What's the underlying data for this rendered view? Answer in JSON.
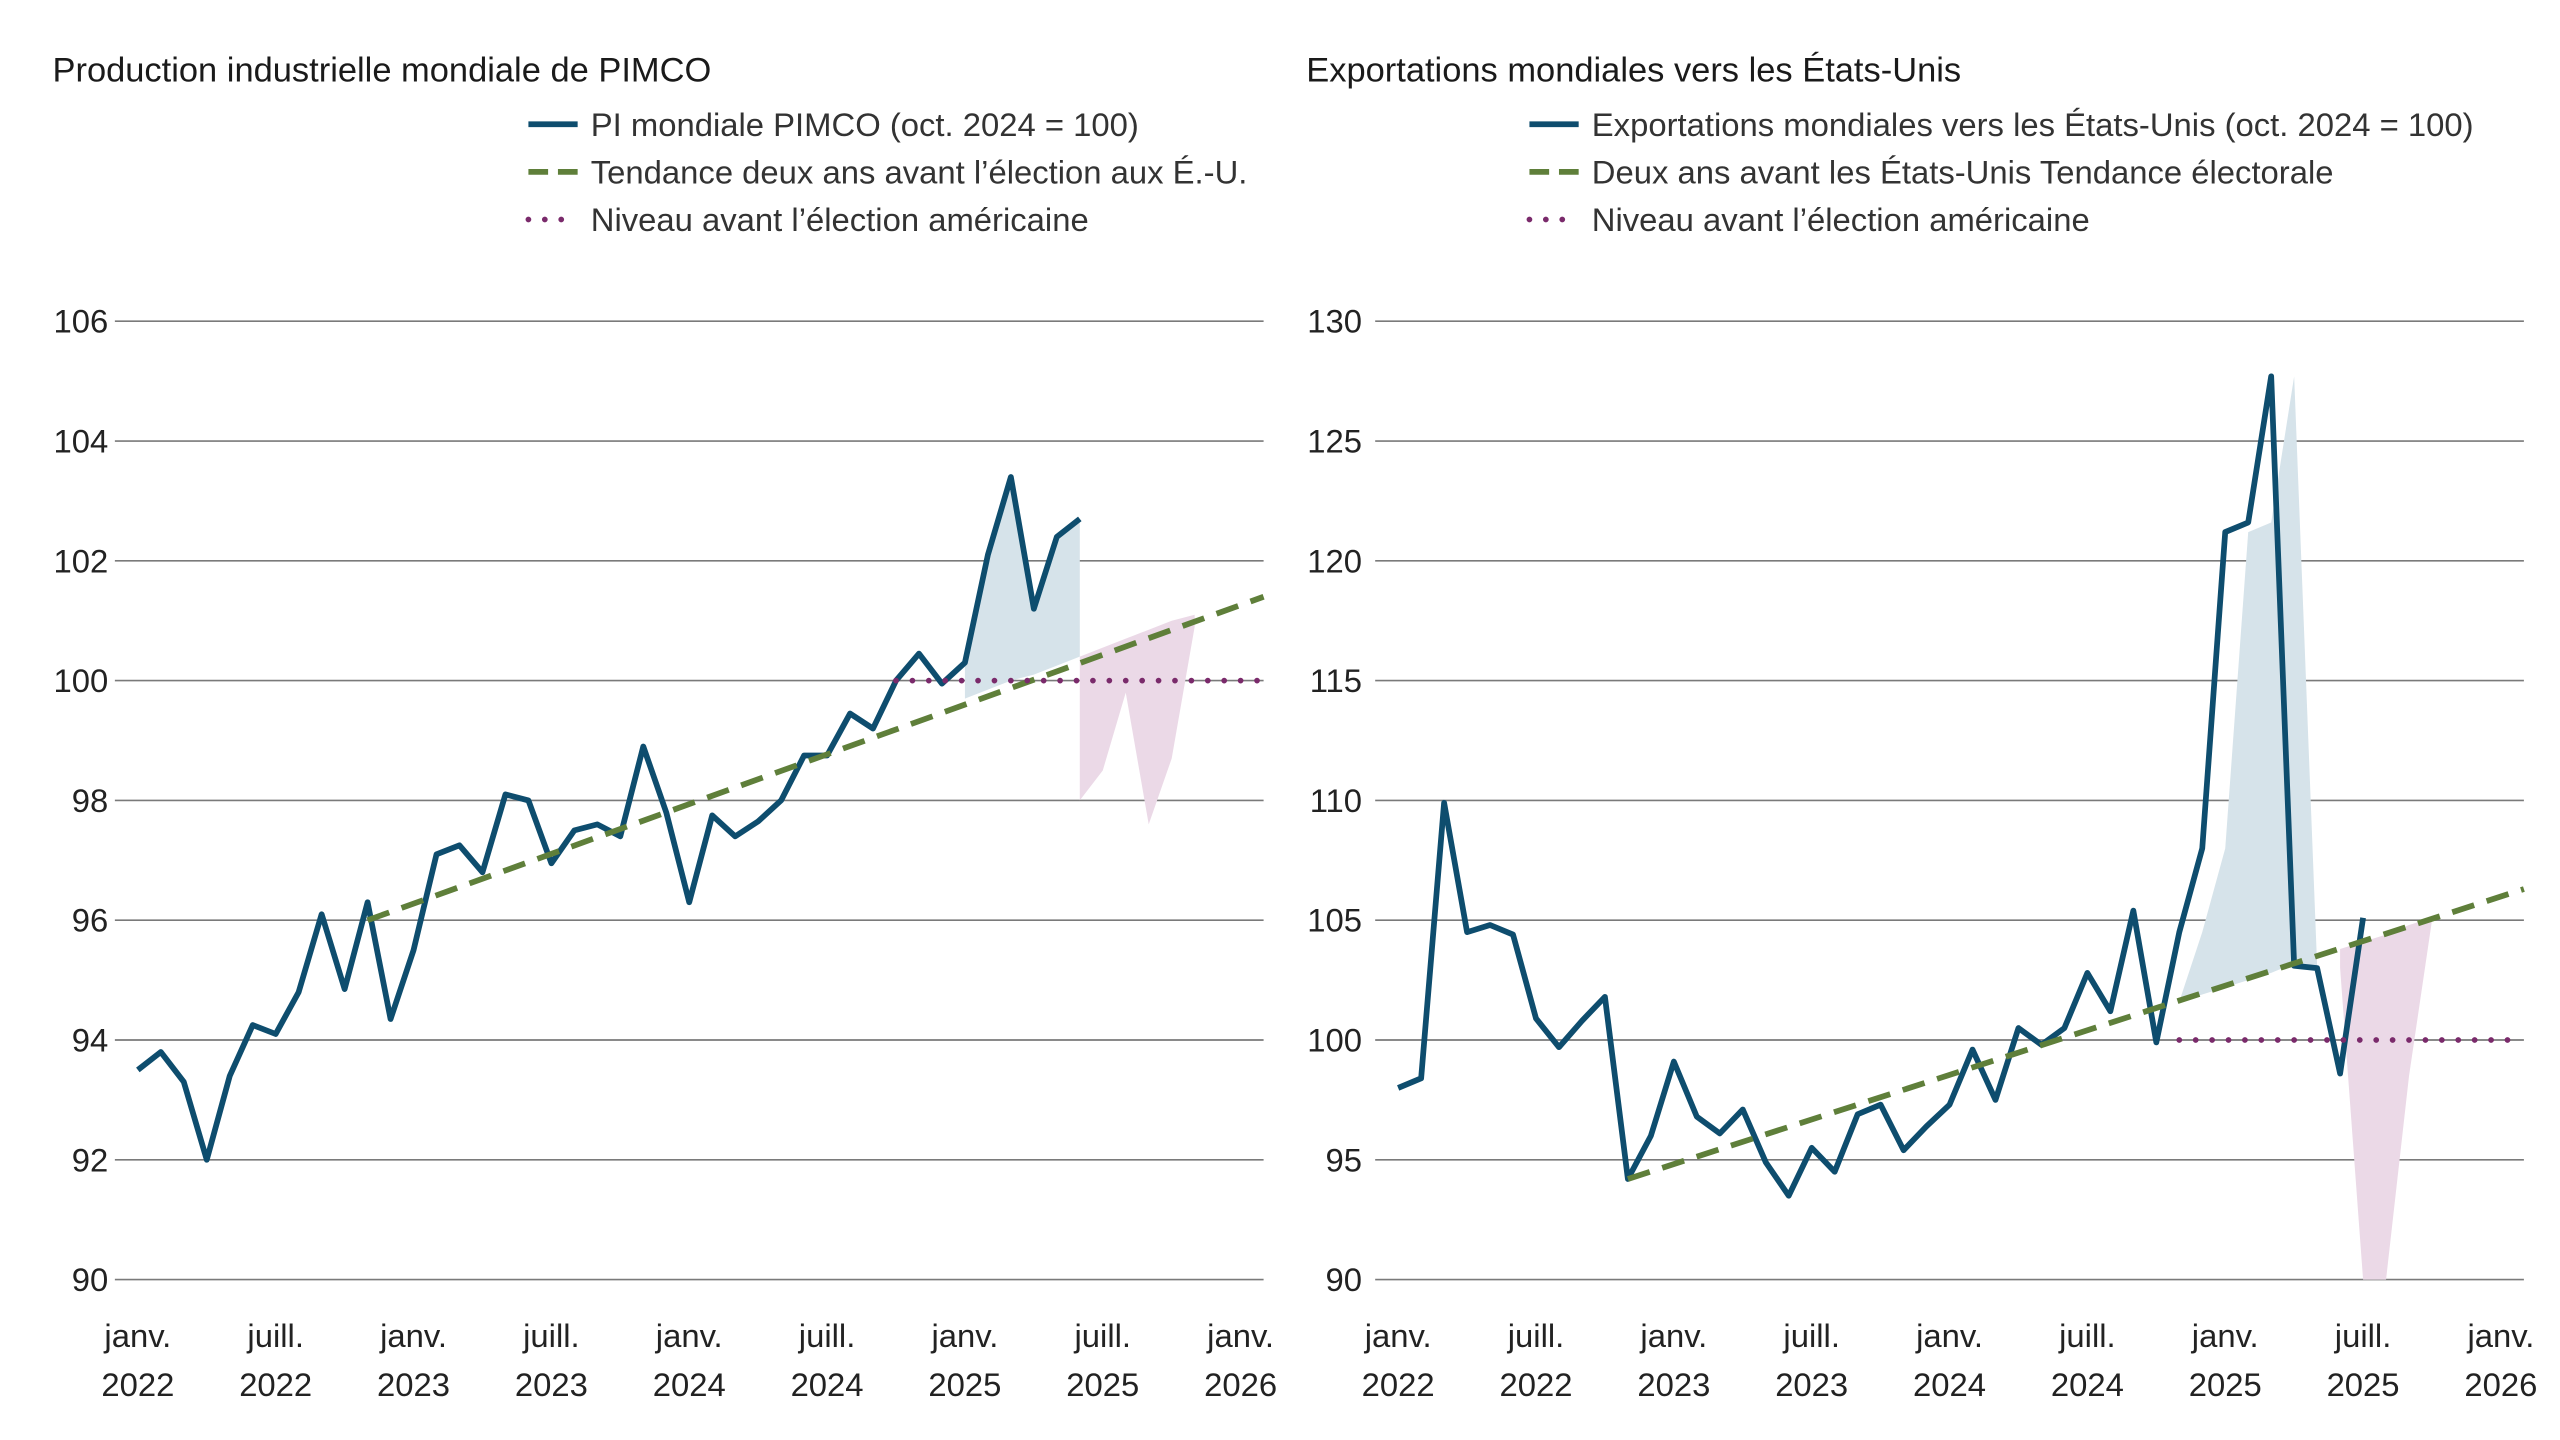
{
  "chart_data": [
    {
      "type": "line",
      "title": "Production industrielle mondiale de PIMCO",
      "xlim": [
        "2021-12",
        "2026-02"
      ],
      "xticks": [
        {
          "value": "2022-01",
          "label": [
            "janv.",
            "2022"
          ]
        },
        {
          "value": "2022-07",
          "label": [
            "juill.",
            "2022"
          ]
        },
        {
          "value": "2023-01",
          "label": [
            "janv.",
            "2023"
          ]
        },
        {
          "value": "2023-07",
          "label": [
            "juill.",
            "2023"
          ]
        },
        {
          "value": "2024-01",
          "label": [
            "janv.",
            "2024"
          ]
        },
        {
          "value": "2024-07",
          "label": [
            "juill.",
            "2024"
          ]
        },
        {
          "value": "2025-01",
          "label": [
            "janv.",
            "2025"
          ]
        },
        {
          "value": "2025-07",
          "label": [
            "juill.",
            "2025"
          ]
        },
        {
          "value": "2026-01",
          "label": [
            "janv.",
            "2026"
          ]
        }
      ],
      "ylim": [
        90,
        106
      ],
      "yticks": [
        90,
        92,
        94,
        96,
        98,
        100,
        102,
        104,
        106
      ],
      "grid": true,
      "x": [
        "2022-01",
        "2022-02",
        "2022-03",
        "2022-04",
        "2022-05",
        "2022-06",
        "2022-07",
        "2022-08",
        "2022-09",
        "2022-10",
        "2022-11",
        "2022-12",
        "2023-01",
        "2023-02",
        "2023-03",
        "2023-04",
        "2023-05",
        "2023-06",
        "2023-07",
        "2023-08",
        "2023-09",
        "2023-10",
        "2023-11",
        "2023-12",
        "2024-01",
        "2024-02",
        "2024-03",
        "2024-04",
        "2024-05",
        "2024-06",
        "2024-07",
        "2024-08",
        "2024-09",
        "2024-10",
        "2024-11",
        "2024-12",
        "2025-01",
        "2025-02",
        "2025-03",
        "2025-04",
        "2025-05",
        "2025-06"
      ],
      "series": [
        {
          "name": "PI mondiale PIMCO (oct. 2024 = 100)",
          "color": "#0e4d6e",
          "line_style": "solid",
          "values": [
            93.5,
            93.8,
            93.3,
            92.0,
            93.4,
            94.25,
            94.1,
            94.8,
            96.1,
            94.85,
            96.3,
            94.35,
            95.5,
            97.1,
            97.25,
            96.8,
            98.1,
            98.0,
            96.95,
            97.5,
            97.6,
            97.4,
            98.9,
            97.8,
            96.3,
            97.75,
            97.4,
            97.65,
            98.0,
            98.75,
            98.75,
            99.45,
            99.2,
            100.0,
            100.45,
            99.95,
            100.3,
            102.1,
            103.4,
            101.2,
            102.4,
            102.7
          ]
        },
        {
          "name": "Tendance deux ans avant l’élection aux É.-U.",
          "color": "#5f7f3a",
          "line_style": "dashed",
          "x": [
            "2022-11",
            "2026-02"
          ],
          "values": [
            96.0,
            101.4
          ]
        },
        {
          "name": "Niveau avant l’élection américaine",
          "color": "#7a2a6b",
          "line_style": "dotted",
          "x": [
            "2024-10",
            "2026-02"
          ],
          "values": [
            100,
            100
          ]
        }
      ],
      "areas": [
        {
          "color": "#d6e3ea",
          "x": [
            "2025-01",
            "2025-02",
            "2025-03",
            "2025-04",
            "2025-05",
            "2025-06"
          ],
          "high": [
            100.3,
            102.1,
            103.4,
            101.2,
            102.4,
            102.7
          ],
          "low": [
            99.7,
            99.85,
            100.0,
            100.1,
            100.25,
            100.4
          ]
        },
        {
          "color": "#ebd9e7",
          "x": [
            "2025-06",
            "2025-07",
            "2025-08",
            "2025-09",
            "2025-10",
            "2025-11"
          ],
          "high": [
            100.4,
            100.55,
            100.7,
            100.85,
            101.0,
            101.1
          ],
          "low": [
            98.0,
            98.5,
            99.8,
            97.6,
            98.7,
            100.9
          ]
        }
      ]
    },
    {
      "type": "line",
      "title": "Exportations mondiales vers les États-Unis",
      "xlim": [
        "2021-12",
        "2026-02"
      ],
      "xticks": [
        {
          "value": "2022-01",
          "label": [
            "janv.",
            "2022"
          ]
        },
        {
          "value": "2022-07",
          "label": [
            "juill.",
            "2022"
          ]
        },
        {
          "value": "2023-01",
          "label": [
            "janv.",
            "2023"
          ]
        },
        {
          "value": "2023-07",
          "label": [
            "juill.",
            "2023"
          ]
        },
        {
          "value": "2024-01",
          "label": [
            "janv.",
            "2024"
          ]
        },
        {
          "value": "2024-07",
          "label": [
            "juill.",
            "2024"
          ]
        },
        {
          "value": "2025-01",
          "label": [
            "janv.",
            "2025"
          ]
        },
        {
          "value": "2025-07",
          "label": [
            "juill.",
            "2025"
          ]
        },
        {
          "value": "2026-01",
          "label": [
            "janv.",
            "2026"
          ]
        }
      ],
      "ylim": [
        90,
        130
      ],
      "yticks": [
        90,
        95,
        100,
        105,
        110,
        115,
        120,
        125,
        130
      ],
      "grid": true,
      "x": [
        "2022-01",
        "2022-02",
        "2022-03",
        "2022-04",
        "2022-05",
        "2022-06",
        "2022-07",
        "2022-08",
        "2022-09",
        "2022-10",
        "2022-11",
        "2022-12",
        "2023-01",
        "2023-02",
        "2023-03",
        "2023-04",
        "2023-05",
        "2023-06",
        "2023-07",
        "2023-08",
        "2023-09",
        "2023-10",
        "2023-11",
        "2023-12",
        "2024-01",
        "2024-02",
        "2024-03",
        "2024-04",
        "2024-05",
        "2024-06",
        "2024-07",
        "2024-08",
        "2024-09",
        "2024-10",
        "2024-11",
        "2024-12",
        "2025-01",
        "2025-02",
        "2025-03",
        "2025-04",
        "2025-05",
        "2025-06",
        "2025-07"
      ],
      "series": [
        {
          "name": "Exportations mondiales vers les États-Unis (oct. 2024 = 100)",
          "color": "#0e4d6e",
          "line_style": "solid",
          "values": [
            98.0,
            98.4,
            109.9,
            104.5,
            104.8,
            104.4,
            100.9,
            99.7,
            100.8,
            101.8,
            94.2,
            96.0,
            99.1,
            96.8,
            96.1,
            97.1,
            94.9,
            93.5,
            95.5,
            94.5,
            96.9,
            97.3,
            95.4,
            96.4,
            97.3,
            99.6,
            97.5,
            100.5,
            99.8,
            100.5,
            102.8,
            101.2,
            105.4,
            99.9,
            104.5,
            108.0,
            121.2,
            121.6,
            127.7,
            103.1,
            103.0,
            98.6,
            105.1
          ]
        },
        {
          "name": "Deux ans avant les États-Unis Tendance électorale",
          "color": "#5f7f3a",
          "line_style": "dashed",
          "x": [
            "2022-11",
            "2026-02"
          ],
          "values": [
            94.2,
            106.3
          ]
        },
        {
          "name": "Niveau avant l’élection américaine",
          "color": "#7a2a6b",
          "line_style": "dotted",
          "x": [
            "2024-11",
            "2026-02"
          ],
          "values": [
            100,
            100
          ]
        }
      ],
      "areas": [
        {
          "color": "#d6e3ea",
          "x": [
            "2024-11",
            "2024-12",
            "2025-01",
            "2025-02",
            "2025-03",
            "2025-04",
            "2025-05"
          ],
          "high": [
            101.6,
            104.5,
            108.0,
            121.2,
            121.6,
            127.7,
            103.1
          ],
          "low": [
            101.6,
            101.9,
            102.2,
            102.5,
            102.8,
            103.2,
            103.1
          ]
        },
        {
          "color": "#ebd9e7",
          "x": [
            "2025-06",
            "2025-07",
            "2025-08",
            "2025-09",
            "2025-10"
          ],
          "high": [
            103.8,
            104.1,
            104.4,
            104.8,
            105.1
          ],
          "low": [
            103.0,
            90,
            90,
            98.5,
            105.0
          ]
        }
      ]
    }
  ]
}
